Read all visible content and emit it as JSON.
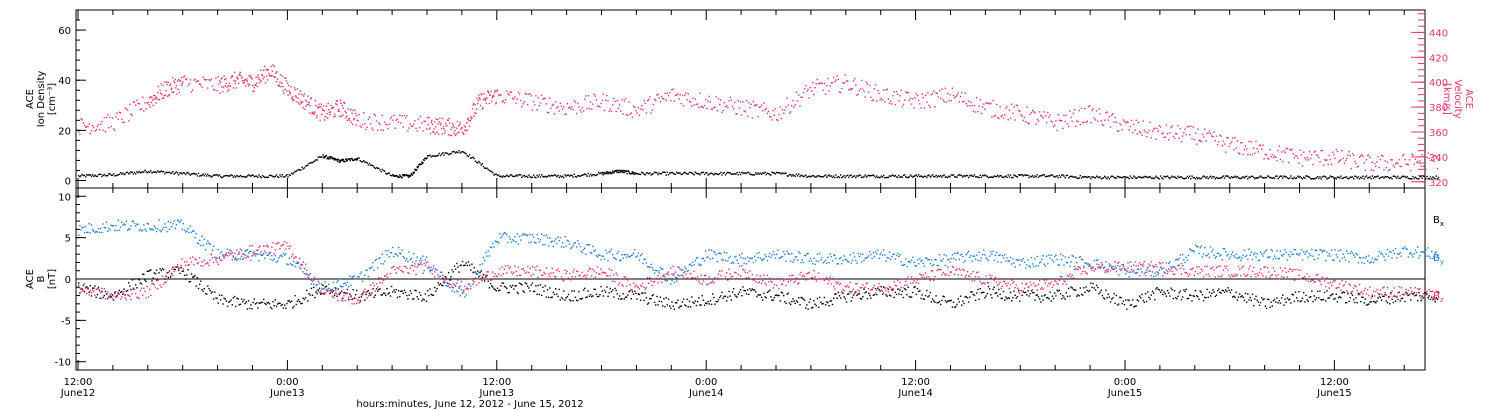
{
  "colors": {
    "black": "#000000",
    "blue": "#1a7fe0",
    "pink": "#e8336a",
    "axis": "#000000"
  },
  "chart_data": [
    {
      "type": "scatter",
      "panel": "top",
      "ylabel_lines": [
        "ACE",
        "Ion Density",
        "[cm⁻³]"
      ],
      "ylim": [
        -3,
        68
      ],
      "yticks": [
        0,
        20,
        40,
        60
      ],
      "y2label_lines": [
        "ACE",
        "Velocity",
        "[km/s]"
      ],
      "y2lim": [
        315,
        458
      ],
      "y2ticks": [
        320,
        340,
        360,
        380,
        400,
        420,
        440
      ],
      "x_range_hours": [
        0,
        78
      ],
      "series": [
        {
          "axis": "left",
          "color": "black",
          "x": [
            0,
            2,
            4,
            6,
            8,
            10,
            12,
            14,
            15,
            16,
            18,
            19,
            20,
            22,
            24,
            26,
            28,
            30,
            31,
            32,
            34,
            36,
            38,
            40,
            42,
            44,
            46,
            48,
            50,
            52,
            54,
            56,
            58,
            60,
            62,
            64,
            66,
            68,
            70,
            72,
            74,
            76,
            78
          ],
          "y": [
            2,
            2.5,
            4,
            3,
            2,
            2,
            2,
            10,
            8,
            9,
            2,
            2,
            10,
            12,
            2,
            2,
            2,
            3,
            4,
            3,
            3,
            3,
            3,
            3,
            2,
            2,
            2,
            2,
            2,
            2,
            2,
            2,
            1.5,
            1.5,
            1.5,
            1.5,
            1.5,
            1.5,
            1.5,
            1.5,
            1.5,
            1.5,
            1.5
          ]
        },
        {
          "axis": "right",
          "color": "pink",
          "x": [
            0,
            2,
            4,
            5,
            6,
            8,
            9,
            10,
            11,
            12,
            13,
            14,
            15,
            16,
            18,
            20,
            21,
            22,
            23,
            24,
            26,
            28,
            30,
            32,
            34,
            36,
            38,
            40,
            42,
            44,
            46,
            48,
            50,
            52,
            54,
            56,
            58,
            60,
            62,
            64,
            66,
            68,
            70,
            72,
            74,
            76,
            78
          ],
          "y": [
            365,
            368,
            385,
            395,
            400,
            398,
            402,
            400,
            410,
            395,
            385,
            375,
            380,
            370,
            368,
            366,
            365,
            363,
            385,
            390,
            385,
            380,
            385,
            378,
            390,
            385,
            380,
            375,
            395,
            400,
            390,
            385,
            390,
            380,
            375,
            368,
            375,
            365,
            360,
            358,
            350,
            345,
            340,
            340,
            335,
            336,
            338
          ]
        }
      ]
    },
    {
      "type": "scatter",
      "panel": "bottom",
      "ylabel_lines": [
        "ACE",
        "B",
        "[nT]"
      ],
      "ylim": [
        -11,
        11
      ],
      "yticks": [
        -10,
        -5,
        0,
        5,
        10
      ],
      "zero_line": true,
      "x_range_hours": [
        0,
        78
      ],
      "legend": [
        "B",
        "B",
        "B"
      ],
      "legend_subscripts": [
        "x",
        "y",
        "z"
      ],
      "legend_colors": [
        "black",
        "blue",
        "pink"
      ],
      "series": [
        {
          "color": "black",
          "x": [
            0,
            2,
            4,
            6,
            8,
            10,
            12,
            14,
            16,
            18,
            20,
            22,
            24,
            26,
            28,
            30,
            32,
            34,
            36,
            38,
            40,
            42,
            44,
            46,
            48,
            50,
            52,
            54,
            56,
            58,
            60,
            62,
            64,
            66,
            68,
            70,
            72,
            74,
            76,
            78
          ],
          "y": [
            -1,
            -2,
            0.5,
            1,
            -2.5,
            -3,
            -3,
            -1,
            -2,
            -1.5,
            -2,
            2,
            -1,
            -1,
            -2,
            -1.5,
            -2,
            -3,
            -2.5,
            -1.5,
            -2,
            -3,
            -2,
            -1.5,
            -1.5,
            -3,
            -1.5,
            -2,
            -2,
            -1,
            -3,
            -1.5,
            -2,
            -1.5,
            -3,
            -2,
            -2,
            -2.5,
            -2,
            -2
          ]
        },
        {
          "color": "blue",
          "x": [
            0,
            2,
            4,
            6,
            8,
            10,
            12,
            14,
            16,
            18,
            20,
            22,
            24,
            26,
            28,
            30,
            32,
            34,
            36,
            38,
            40,
            42,
            44,
            46,
            48,
            50,
            52,
            54,
            56,
            58,
            60,
            62,
            64,
            66,
            68,
            70,
            72,
            74,
            76,
            78
          ],
          "y": [
            6,
            6.5,
            6.5,
            6.5,
            3,
            3,
            2.5,
            -1,
            0,
            3.5,
            2,
            -2,
            5,
            5,
            4.5,
            3,
            3,
            0,
            3,
            2.5,
            3,
            2.5,
            2.5,
            3,
            2,
            2.5,
            3,
            2,
            2.5,
            2,
            1,
            1,
            3.5,
            3,
            3,
            3,
            3,
            2.5,
            3.5,
            3
          ]
        },
        {
          "color": "pink",
          "x": [
            0,
            2,
            4,
            6,
            8,
            10,
            12,
            14,
            16,
            18,
            20,
            22,
            24,
            26,
            28,
            30,
            32,
            34,
            36,
            38,
            40,
            42,
            44,
            46,
            48,
            50,
            52,
            54,
            56,
            58,
            60,
            62,
            64,
            66,
            68,
            70,
            72,
            74,
            76,
            78
          ],
          "y": [
            -1,
            -2,
            -1.5,
            2,
            2.5,
            3.5,
            4,
            -1.5,
            -2.5,
            1,
            1.5,
            -1,
            1,
            1,
            0.5,
            1,
            -1,
            1,
            0,
            1,
            -0.5,
            0.5,
            -1,
            -1,
            0,
            1,
            0,
            -1,
            -0.5,
            1.5,
            1.5,
            1.5,
            1,
            1,
            1,
            0.5,
            -0.5,
            -1.5,
            -1.5,
            -2
          ]
        }
      ]
    }
  ],
  "xaxis": {
    "tick_labels": [
      {
        "hour": 0,
        "time": "12:00",
        "date": "June12"
      },
      {
        "hour": 12,
        "time": "0:00",
        "date": "June13"
      },
      {
        "hour": 24,
        "time": "12:00",
        "date": "June13"
      },
      {
        "hour": 36,
        "time": "0:00",
        "date": "June14"
      },
      {
        "hour": 48,
        "time": "12:00",
        "date": "June14"
      },
      {
        "hour": 60,
        "time": "0:00",
        "date": "June15"
      },
      {
        "hour": 72,
        "time": "12:00",
        "date": "June15"
      }
    ],
    "label": "hours:minutes, June 12, 2012 - June 15, 2012"
  }
}
